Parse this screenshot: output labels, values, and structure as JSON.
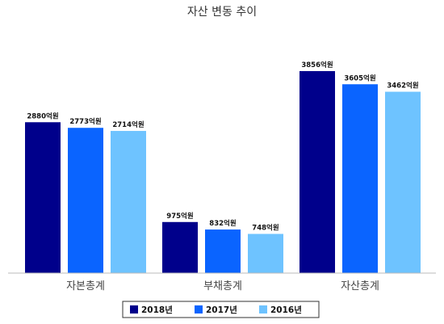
{
  "chart_data": {
    "type": "bar",
    "title": "자산 변동 추이",
    "categories": [
      "자본총계",
      "부채총계",
      "자산총계"
    ],
    "series": [
      {
        "name": "2018년",
        "color": "#00008b",
        "values": [
          2880,
          975,
          3856
        ],
        "labels": [
          "2880억원",
          "975억원",
          "3856억원"
        ]
      },
      {
        "name": "2017년",
        "color": "#0a64ff",
        "values": [
          2773,
          832,
          3605
        ],
        "labels": [
          "2773억원",
          "832억원",
          "3605억원"
        ]
      },
      {
        "name": "2016년",
        "color": "#6ec3ff",
        "values": [
          2714,
          748,
          3462
        ],
        "labels": [
          "2714억원",
          "748억원",
          "3462억원"
        ]
      }
    ],
    "unit": "억원",
    "xlabel": "",
    "ylabel": "",
    "ylim": [
      0,
      4000
    ],
    "grid": false,
    "legend_position": "bottom"
  }
}
